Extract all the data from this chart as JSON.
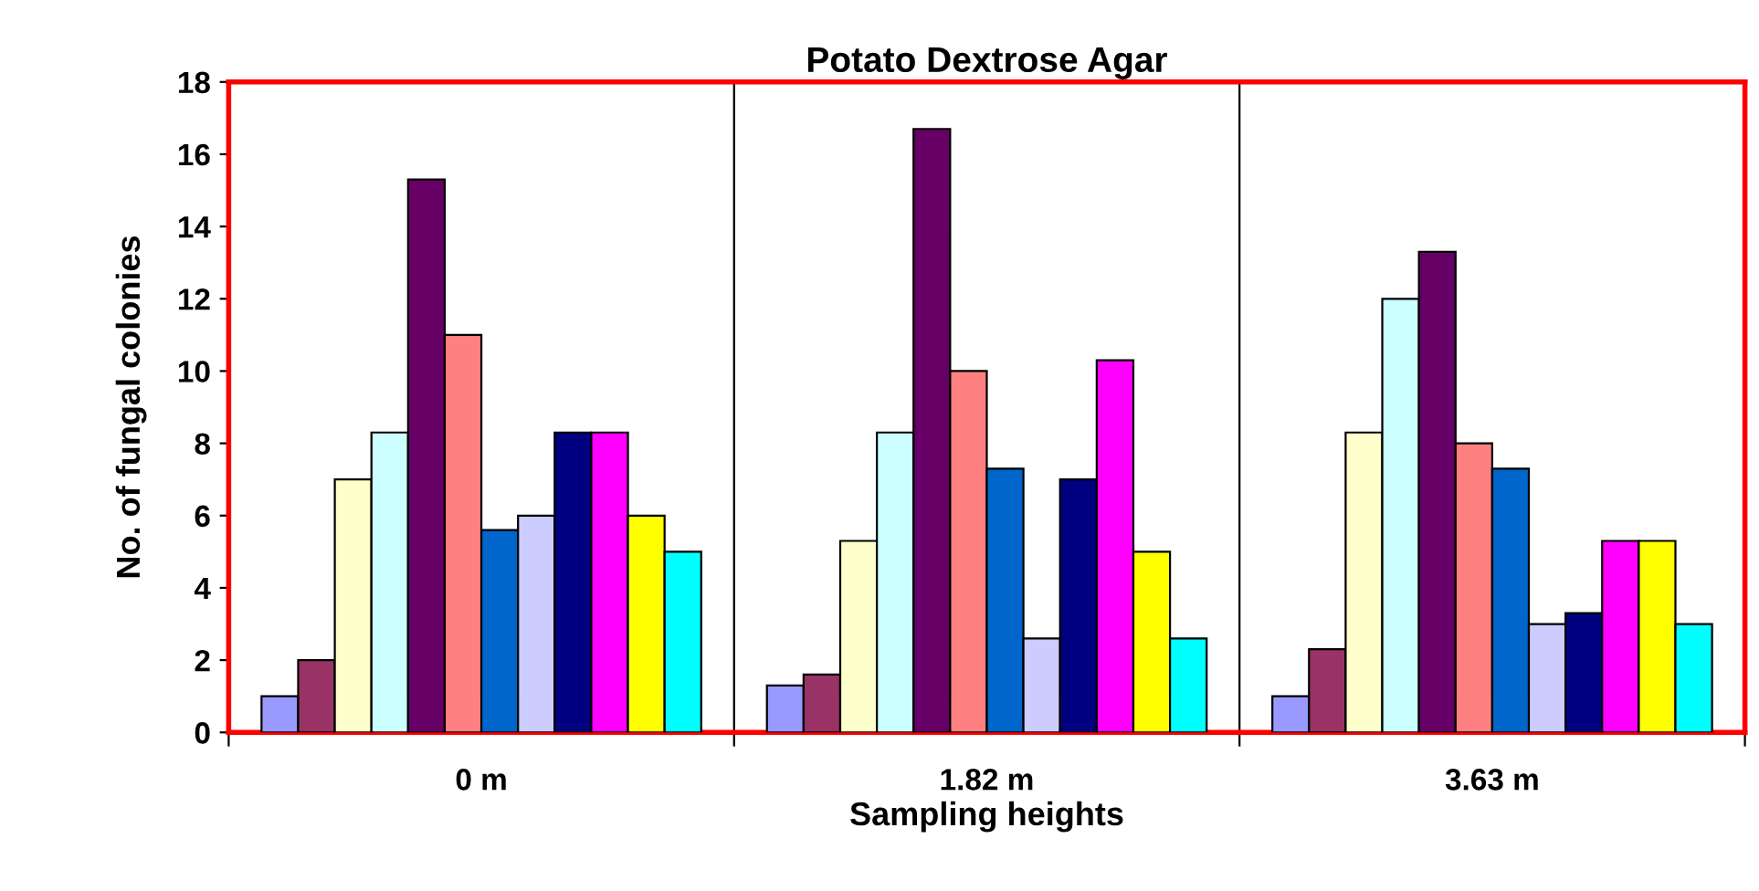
{
  "chart_data": {
    "type": "bar",
    "title": "Potato Dextrose Agar",
    "xlabel": "Sampling heights",
    "ylabel": "No. of fungal colonies",
    "categories": [
      "0 m",
      "1.82 m",
      "3.63 m"
    ],
    "series": [
      {
        "color": "#9999ff",
        "values": [
          1,
          1.3,
          1
        ]
      },
      {
        "color": "#993366",
        "values": [
          2,
          1.6,
          2.3
        ]
      },
      {
        "color": "#ffffcc",
        "values": [
          7,
          5.3,
          8.3
        ]
      },
      {
        "color": "#ccffff",
        "values": [
          8.3,
          8.3,
          12
        ]
      },
      {
        "color": "#660066",
        "values": [
          15.3,
          16.7,
          13.3
        ]
      },
      {
        "color": "#ff8080",
        "values": [
          11,
          10,
          8
        ]
      },
      {
        "color": "#0066cc",
        "values": [
          5.6,
          7.3,
          7.3
        ]
      },
      {
        "color": "#ccccff",
        "values": [
          6,
          2.6,
          3
        ]
      },
      {
        "color": "#000080",
        "values": [
          8.3,
          7,
          3.3
        ]
      },
      {
        "color": "#ff00ff",
        "values": [
          8.3,
          10.3,
          5.3
        ]
      },
      {
        "color": "#ffff00",
        "values": [
          6,
          5,
          5.3
        ]
      },
      {
        "color": "#00ffff",
        "values": [
          5,
          2.6,
          3
        ]
      }
    ],
    "ylim": [
      0,
      18
    ],
    "yticks": [
      0,
      2,
      4,
      6,
      8,
      10,
      12,
      14,
      16,
      18
    ],
    "grid": "x",
    "legend": false
  }
}
